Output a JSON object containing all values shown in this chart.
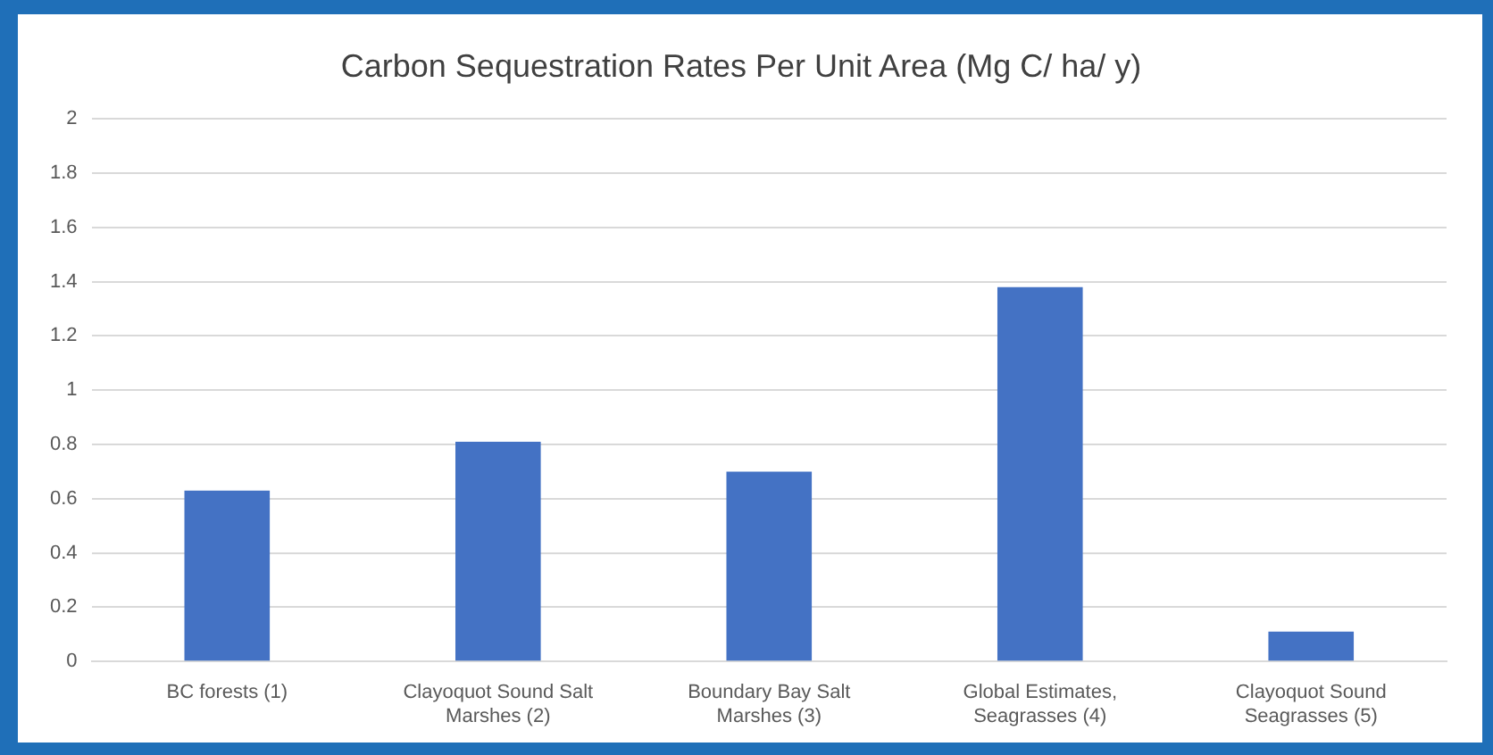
{
  "chart_data": {
    "type": "bar",
    "title": "Carbon Sequestration Rates Per Unit Area (Mg C/ ha/ y)",
    "categories": [
      "BC forests (1)",
      "Clayoquot Sound Salt Marshes (2)",
      "Boundary Bay Salt Marshes (3)",
      "Global Estimates, Seagrasses (4)",
      "Clayoquot Sound Seagrasses (5)"
    ],
    "values": [
      0.63,
      0.81,
      0.7,
      1.38,
      0.11
    ],
    "color": "#4472c4",
    "ylim": [
      0,
      2
    ],
    "yticks": [
      0,
      {
        "value": 0.2,
        "label": "0.2"
      },
      {
        "value": 0.4,
        "label": "0.4"
      },
      {
        "value": 0.6,
        "label": "0.6"
      },
      {
        "value": 0.8,
        "label": "0.8"
      },
      1,
      {
        "value": 1.2,
        "label": "1.2"
      },
      {
        "value": 1.4,
        "label": "1.4"
      },
      {
        "value": 1.6,
        "label": "1.6"
      },
      {
        "value": 1.8,
        "label": "1.8"
      },
      2
    ],
    "grid": "y",
    "legend": false
  }
}
